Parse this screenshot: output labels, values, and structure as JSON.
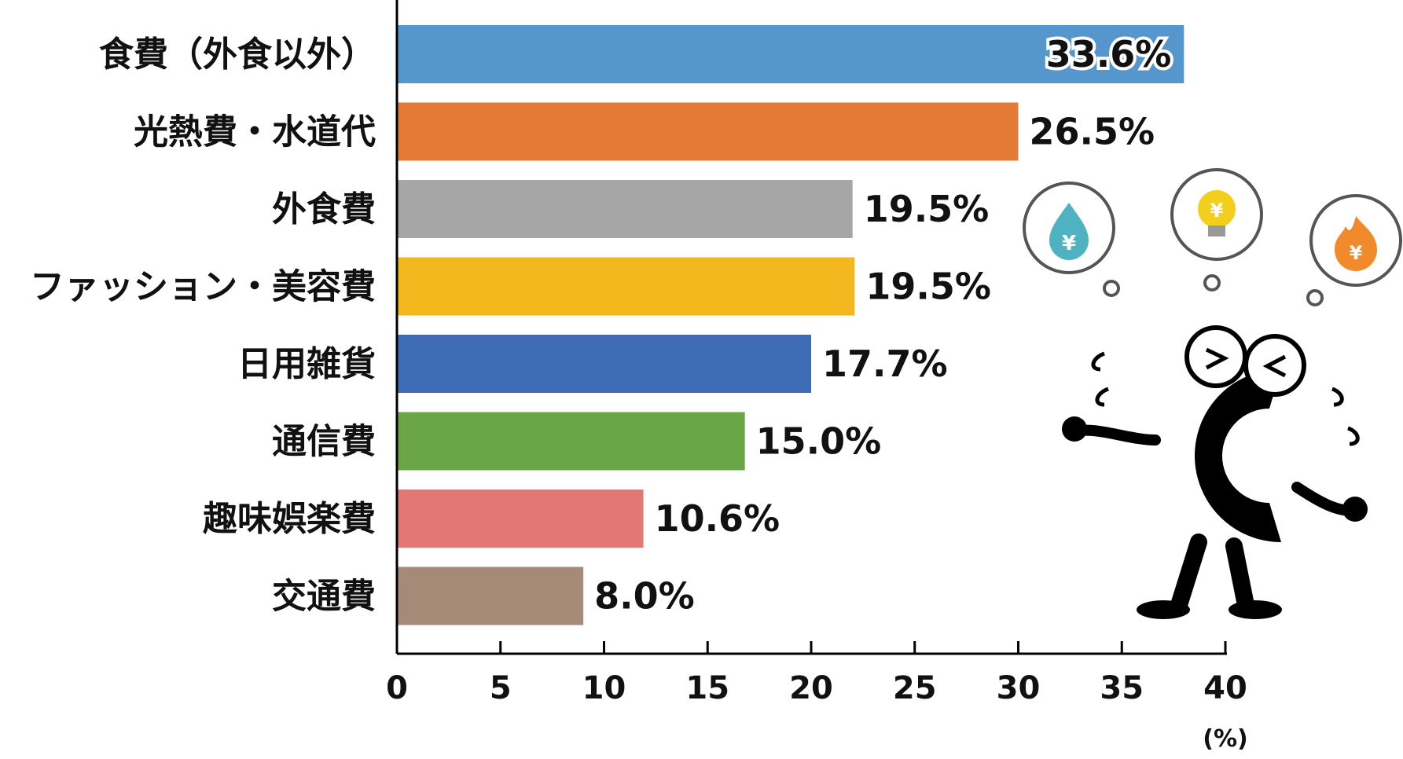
{
  "chart_data": {
    "type": "bar",
    "orientation": "horizontal",
    "categories": [
      "食費（外食以外）",
      "光熱費・水道代",
      "外食費",
      "ファッション・美容費",
      "日用雑貨",
      "通信費",
      "趣味娯楽費",
      "交通費"
    ],
    "values": [
      38.0,
      30.0,
      22.0,
      22.1,
      20.0,
      16.8,
      11.9,
      9.0
    ],
    "value_labels": [
      "33.6%",
      "26.5%",
      "19.5%",
      "19.5%",
      "17.7%",
      "15.0%",
      "10.6%",
      "8.0%"
    ],
    "colors": [
      "#5596cc",
      "#e37b36",
      "#a6a6a6",
      "#f3b81d",
      "#3d6cb4",
      "#6aa646",
      "#e37774",
      "#a58a78"
    ],
    "x_ticks": [
      0,
      5,
      10,
      15,
      20,
      25,
      30,
      35,
      40
    ],
    "xlim": [
      0,
      40
    ],
    "xunit": "(%)",
    "grid": false,
    "legend": "none",
    "title": "",
    "xlabel": "",
    "ylabel": ""
  },
  "illustration": {
    "character": "black-c-mascot",
    "bubbles": [
      {
        "icon": "water-drop-yen-icon",
        "symbol": "¥",
        "color": "#4fb2c0"
      },
      {
        "icon": "light-bulb-yen-icon",
        "symbol": "¥",
        "color": "#f3cf1d"
      },
      {
        "icon": "flame-yen-icon",
        "symbol": "¥",
        "color": "#f08a2b"
      }
    ]
  }
}
